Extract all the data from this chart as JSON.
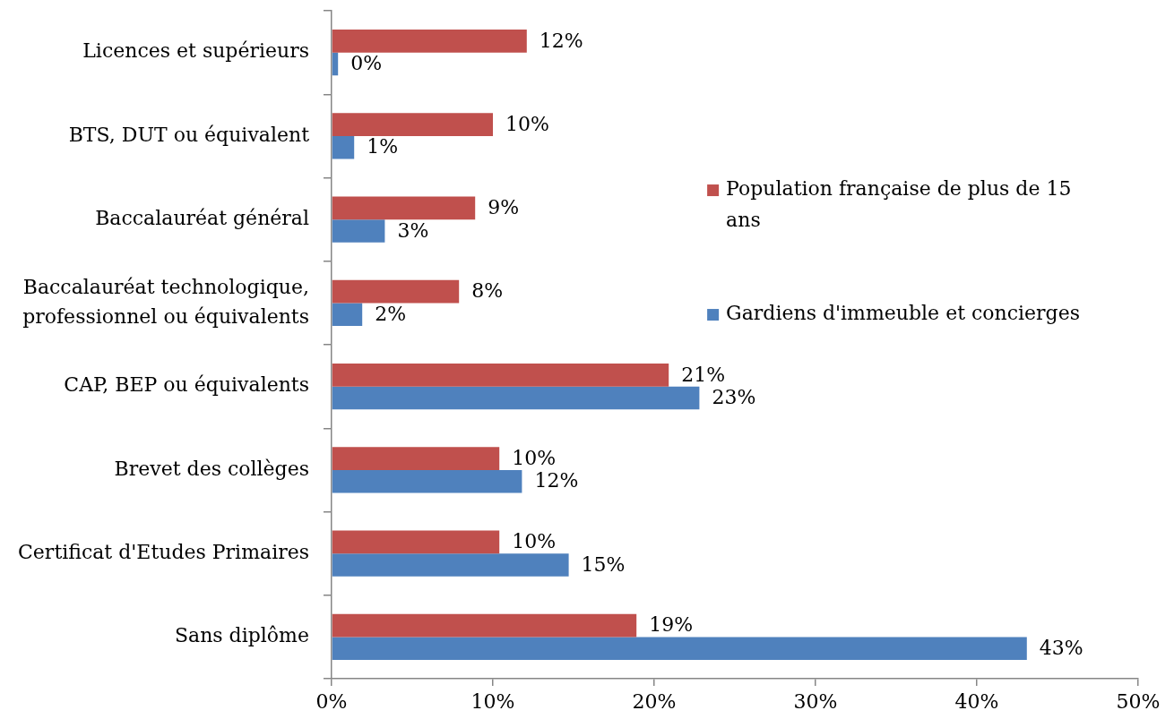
{
  "chart_data": {
    "type": "bar",
    "orientation": "horizontal",
    "categories": [
      "Licences et supérieurs",
      "BTS, DUT ou équivalent",
      "Baccalauréat général",
      "Baccalauréat technologique, professionnel ou équivalents",
      "CAP, BEP ou équivalents",
      "Brevet des collèges",
      "Certificat d'Etudes Primaires",
      "Sans diplôme"
    ],
    "series": [
      {
        "name": "Population française de plus de 15 ans",
        "color": "#c0504d",
        "values": [
          12.1,
          10.0,
          8.9,
          7.9,
          20.9,
          10.4,
          10.4,
          18.9
        ],
        "value_labels": [
          "12%",
          "10%",
          "9%",
          "8%",
          "21%",
          "10%",
          "10%",
          "19%"
        ]
      },
      {
        "name": "Gardiens d'immeuble et concierges",
        "color": "#4f81bd",
        "values": [
          0.4,
          1.4,
          3.3,
          1.9,
          22.8,
          11.8,
          14.7,
          43.1
        ],
        "value_labels": [
          "0%",
          "1%",
          "3%",
          "2%",
          "23%",
          "12%",
          "15%",
          "43%"
        ]
      }
    ],
    "xlim": [
      0,
      50
    ],
    "xticks": [
      {
        "value": 0,
        "label": "0%"
      },
      {
        "value": 10,
        "label": "10%"
      },
      {
        "value": 20,
        "label": "20%"
      },
      {
        "value": 30,
        "label": "30%"
      },
      {
        "value": 40,
        "label": "40%"
      },
      {
        "value": 50,
        "label": "50%"
      }
    ],
    "legend": "right"
  }
}
